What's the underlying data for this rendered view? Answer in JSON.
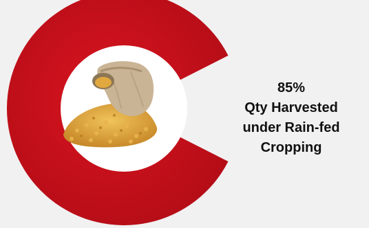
{
  "colors": {
    "background": "#f1f1f1",
    "ring": "#c8101c",
    "ring_shadow": "#9e0c15",
    "center": "#ffffff",
    "text": "#111111"
  },
  "center_image": {
    "icon": "sack-of-grain-icon"
  },
  "chart_data": {
    "type": "pie",
    "style": "donut",
    "slices": [
      {
        "label": "Qty Harvested under Rain-fed Cropping",
        "value": 85
      },
      {
        "label": "",
        "value": 15
      }
    ],
    "callout": {
      "value_text": "85%",
      "label_lines": [
        "Qty Harvested",
        "under Rain-fed",
        "Cropping"
      ]
    }
  }
}
